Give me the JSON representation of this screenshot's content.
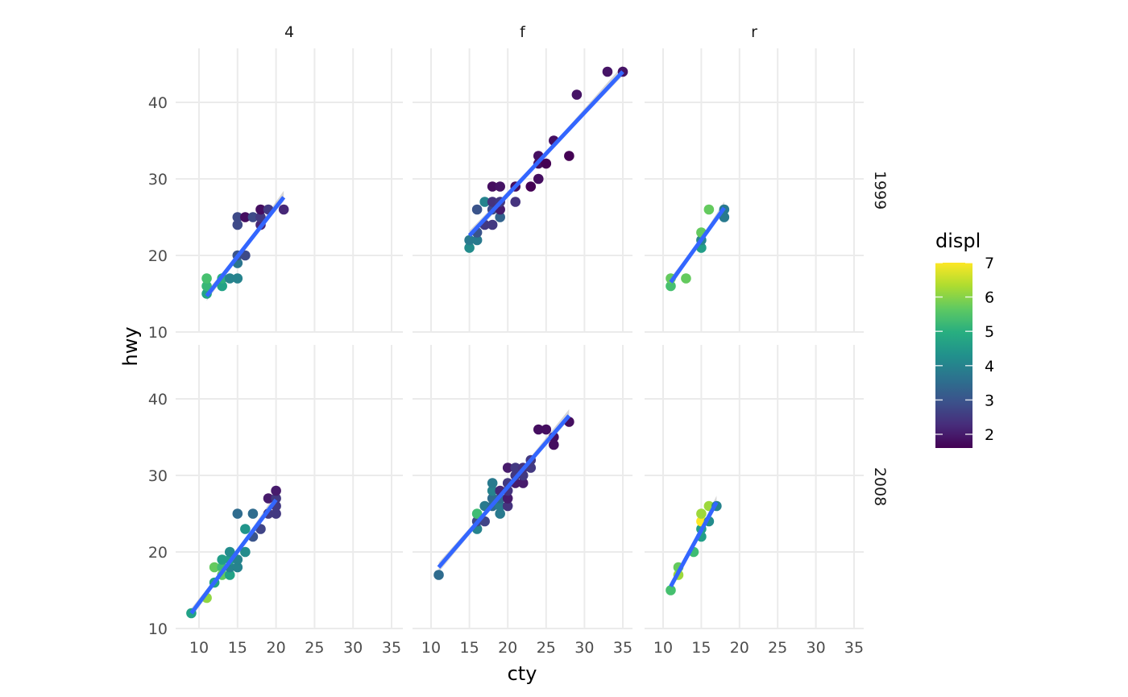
{
  "chart_data": {
    "type": "scatter",
    "title": "",
    "xlabel": "cty",
    "ylabel": "hwy",
    "xlim": [
      8,
      36
    ],
    "ylim": [
      10,
      46
    ],
    "x_ticks": [
      10,
      15,
      20,
      25,
      30,
      35
    ],
    "y_ticks": [
      10,
      20,
      30,
      40
    ],
    "grid": true,
    "facet_cols": [
      "4",
      "f",
      "r"
    ],
    "facet_rows": [
      "1999",
      "2008"
    ],
    "color_legend": {
      "title": "displ",
      "ticks": [
        2,
        3,
        4,
        5,
        6,
        7
      ],
      "range": [
        1.6,
        7.0
      ],
      "colormap": "viridis",
      "position": "right"
    },
    "smooth": {
      "method": "lm",
      "color": "#3366FF",
      "se": true
    },
    "panels": [
      {
        "col": "4",
        "row": "1999",
        "fit": {
          "x0": 11,
          "y0": 14.7,
          "x1": 21,
          "y1": 27.6
        },
        "points": [
          {
            "cty": 11,
            "hwy": 15,
            "displ": 4.7
          },
          {
            "cty": 11,
            "hwy": 16,
            "displ": 5.2
          },
          {
            "cty": 11,
            "hwy": 17,
            "displ": 5.4
          },
          {
            "cty": 13,
            "hwy": 16,
            "displ": 4.7
          },
          {
            "cty": 13,
            "hwy": 17,
            "displ": 5.0
          },
          {
            "cty": 14,
            "hwy": 17,
            "displ": 4.0
          },
          {
            "cty": 15,
            "hwy": 17,
            "displ": 4.0
          },
          {
            "cty": 15,
            "hwy": 19,
            "displ": 3.7
          },
          {
            "cty": 15,
            "hwy": 20,
            "displ": 3.0
          },
          {
            "cty": 16,
            "hwy": 20,
            "displ": 2.8
          },
          {
            "cty": 15,
            "hwy": 24,
            "displ": 2.8
          },
          {
            "cty": 15,
            "hwy": 25,
            "displ": 2.8
          },
          {
            "cty": 16,
            "hwy": 25,
            "displ": 1.8
          },
          {
            "cty": 17,
            "hwy": 25,
            "displ": 2.8
          },
          {
            "cty": 18,
            "hwy": 24,
            "displ": 2.2
          },
          {
            "cty": 18,
            "hwy": 25,
            "displ": 2.5
          },
          {
            "cty": 18,
            "hwy": 26,
            "displ": 1.8
          },
          {
            "cty": 19,
            "hwy": 26,
            "displ": 2.5
          },
          {
            "cty": 21,
            "hwy": 26,
            "displ": 2.2
          }
        ]
      },
      {
        "col": "f",
        "row": "1999",
        "fit": {
          "x0": 15,
          "y0": 22.6,
          "x1": 35,
          "y1": 44.0
        },
        "points": [
          {
            "cty": 15,
            "hwy": 21,
            "displ": 4.2
          },
          {
            "cty": 15,
            "hwy": 22,
            "displ": 3.8
          },
          {
            "cty": 16,
            "hwy": 22,
            "displ": 3.8
          },
          {
            "cty": 16,
            "hwy": 23,
            "displ": 3.0
          },
          {
            "cty": 16,
            "hwy": 26,
            "displ": 3.0
          },
          {
            "cty": 17,
            "hwy": 24,
            "displ": 2.5
          },
          {
            "cty": 17,
            "hwy": 27,
            "displ": 4.0
          },
          {
            "cty": 18,
            "hwy": 24,
            "displ": 2.5
          },
          {
            "cty": 18,
            "hwy": 26,
            "displ": 2.8
          },
          {
            "cty": 18,
            "hwy": 27,
            "displ": 2.4
          },
          {
            "cty": 18,
            "hwy": 29,
            "displ": 1.8
          },
          {
            "cty": 19,
            "hwy": 29,
            "displ": 1.9
          },
          {
            "cty": 19,
            "hwy": 25,
            "displ": 3.3
          },
          {
            "cty": 19,
            "hwy": 26,
            "displ": 2.0
          },
          {
            "cty": 19,
            "hwy": 27,
            "displ": 2.5
          },
          {
            "cty": 21,
            "hwy": 27,
            "displ": 2.4
          },
          {
            "cty": 21,
            "hwy": 29,
            "displ": 1.8
          },
          {
            "cty": 23,
            "hwy": 29,
            "displ": 1.6
          },
          {
            "cty": 24,
            "hwy": 30,
            "displ": 1.8
          },
          {
            "cty": 24,
            "hwy": 32,
            "displ": 1.8
          },
          {
            "cty": 24,
            "hwy": 33,
            "displ": 1.8
          },
          {
            "cty": 25,
            "hwy": 32,
            "displ": 1.6
          },
          {
            "cty": 26,
            "hwy": 35,
            "displ": 1.8
          },
          {
            "cty": 28,
            "hwy": 33,
            "displ": 1.6
          },
          {
            "cty": 29,
            "hwy": 41,
            "displ": 1.9
          },
          {
            "cty": 33,
            "hwy": 44,
            "displ": 1.9
          },
          {
            "cty": 35,
            "hwy": 44,
            "displ": 1.9
          }
        ]
      },
      {
        "col": "r",
        "row": "1999",
        "fit": {
          "x0": 11,
          "y0": 16.5,
          "x1": 18,
          "y1": 26.2
        },
        "points": [
          {
            "cty": 11,
            "hwy": 16,
            "displ": 5.4
          },
          {
            "cty": 11,
            "hwy": 17,
            "displ": 5.7
          },
          {
            "cty": 13,
            "hwy": 17,
            "displ": 5.7
          },
          {
            "cty": 15,
            "hwy": 21,
            "displ": 4.6
          },
          {
            "cty": 15,
            "hwy": 22,
            "displ": 4.0
          },
          {
            "cty": 15,
            "hwy": 23,
            "displ": 5.7
          },
          {
            "cty": 16,
            "hwy": 26,
            "displ": 5.7
          },
          {
            "cty": 18,
            "hwy": 25,
            "displ": 3.8
          },
          {
            "cty": 18,
            "hwy": 26,
            "displ": 3.8
          }
        ]
      },
      {
        "col": "4",
        "row": "2008",
        "fit": {
          "x0": 9,
          "y0": 12.0,
          "x1": 20,
          "y1": 26.8
        },
        "points": [
          {
            "cty": 9,
            "hwy": 12,
            "displ": 4.7
          },
          {
            "cty": 11,
            "hwy": 14,
            "displ": 6.1
          },
          {
            "cty": 12,
            "hwy": 16,
            "displ": 4.7
          },
          {
            "cty": 12,
            "hwy": 18,
            "displ": 5.7
          },
          {
            "cty": 13,
            "hwy": 18,
            "displ": 5.3
          },
          {
            "cty": 13,
            "hwy": 17,
            "displ": 5.7
          },
          {
            "cty": 13,
            "hwy": 19,
            "displ": 4.6
          },
          {
            "cty": 14,
            "hwy": 17,
            "displ": 4.7
          },
          {
            "cty": 14,
            "hwy": 18,
            "displ": 4.0
          },
          {
            "cty": 14,
            "hwy": 19,
            "displ": 4.6
          },
          {
            "cty": 14,
            "hwy": 20,
            "displ": 4.2
          },
          {
            "cty": 15,
            "hwy": 18,
            "displ": 4.0
          },
          {
            "cty": 15,
            "hwy": 19,
            "displ": 4.0
          },
          {
            "cty": 15,
            "hwy": 25,
            "displ": 3.5
          },
          {
            "cty": 16,
            "hwy": 20,
            "displ": 4.2
          },
          {
            "cty": 16,
            "hwy": 23,
            "displ": 4.4
          },
          {
            "cty": 17,
            "hwy": 22,
            "displ": 3.0
          },
          {
            "cty": 17,
            "hwy": 25,
            "displ": 3.5
          },
          {
            "cty": 18,
            "hwy": 23,
            "displ": 2.7
          },
          {
            "cty": 19,
            "hwy": 25,
            "displ": 2.5
          },
          {
            "cty": 19,
            "hwy": 27,
            "displ": 2.0
          },
          {
            "cty": 20,
            "hwy": 25,
            "displ": 2.5
          },
          {
            "cty": 20,
            "hwy": 26,
            "displ": 2.5
          },
          {
            "cty": 20,
            "hwy": 27,
            "displ": 2.5
          },
          {
            "cty": 20,
            "hwy": 28,
            "displ": 2.0
          }
        ]
      },
      {
        "col": "f",
        "row": "2008",
        "fit": {
          "x0": 11,
          "y0": 18.0,
          "x1": 28,
          "y1": 37.8
        },
        "points": [
          {
            "cty": 11,
            "hwy": 17,
            "displ": 3.5
          },
          {
            "cty": 16,
            "hwy": 23,
            "displ": 4.0
          },
          {
            "cty": 16,
            "hwy": 24,
            "displ": 2.8
          },
          {
            "cty": 16,
            "hwy": 25,
            "displ": 5.3
          },
          {
            "cty": 17,
            "hwy": 24,
            "displ": 2.7
          },
          {
            "cty": 17,
            "hwy": 26,
            "displ": 3.8
          },
          {
            "cty": 18,
            "hwy": 26,
            "displ": 3.5
          },
          {
            "cty": 18,
            "hwy": 27,
            "displ": 3.5
          },
          {
            "cty": 18,
            "hwy": 28,
            "displ": 4.0
          },
          {
            "cty": 18,
            "hwy": 29,
            "displ": 3.8
          },
          {
            "cty": 19,
            "hwy": 25,
            "displ": 3.8
          },
          {
            "cty": 19,
            "hwy": 26,
            "displ": 3.8
          },
          {
            "cty": 19,
            "hwy": 27,
            "displ": 3.5
          },
          {
            "cty": 19,
            "hwy": 28,
            "displ": 2.2
          },
          {
            "cty": 20,
            "hwy": 26,
            "displ": 2.4
          },
          {
            "cty": 20,
            "hwy": 27,
            "displ": 2.0
          },
          {
            "cty": 20,
            "hwy": 28,
            "displ": 2.4
          },
          {
            "cty": 20,
            "hwy": 29,
            "displ": 2.5
          },
          {
            "cty": 20,
            "hwy": 31,
            "displ": 2.0
          },
          {
            "cty": 21,
            "hwy": 29,
            "displ": 2.0
          },
          {
            "cty": 21,
            "hwy": 30,
            "displ": 2.5
          },
          {
            "cty": 21,
            "hwy": 31,
            "displ": 2.5
          },
          {
            "cty": 22,
            "hwy": 29,
            "displ": 2.0
          },
          {
            "cty": 22,
            "hwy": 30,
            "displ": 2.5
          },
          {
            "cty": 22,
            "hwy": 31,
            "displ": 2.4
          },
          {
            "cty": 23,
            "hwy": 31,
            "displ": 2.5
          },
          {
            "cty": 23,
            "hwy": 32,
            "displ": 2.5
          },
          {
            "cty": 24,
            "hwy": 36,
            "displ": 1.8
          },
          {
            "cty": 25,
            "hwy": 36,
            "displ": 1.8
          },
          {
            "cty": 26,
            "hwy": 34,
            "displ": 1.8
          },
          {
            "cty": 26,
            "hwy": 35,
            "displ": 1.8
          },
          {
            "cty": 28,
            "hwy": 37,
            "displ": 1.8
          }
        ]
      },
      {
        "col": "r",
        "row": "2008",
        "fit": {
          "x0": 11,
          "y0": 15.5,
          "x1": 17,
          "y1": 26.5
        },
        "points": [
          {
            "cty": 11,
            "hwy": 15,
            "displ": 5.4
          },
          {
            "cty": 12,
            "hwy": 17,
            "displ": 6.2
          },
          {
            "cty": 12,
            "hwy": 18,
            "displ": 5.7
          },
          {
            "cty": 14,
            "hwy": 20,
            "displ": 5.3
          },
          {
            "cty": 15,
            "hwy": 22,
            "displ": 4.6
          },
          {
            "cty": 15,
            "hwy": 23,
            "displ": 4.6
          },
          {
            "cty": 15,
            "hwy": 24,
            "displ": 7.0
          },
          {
            "cty": 15,
            "hwy": 25,
            "displ": 6.2
          },
          {
            "cty": 16,
            "hwy": 24,
            "displ": 4.2
          },
          {
            "cty": 16,
            "hwy": 26,
            "displ": 6.2
          },
          {
            "cty": 17,
            "hwy": 26,
            "displ": 4.0
          }
        ]
      }
    ]
  }
}
